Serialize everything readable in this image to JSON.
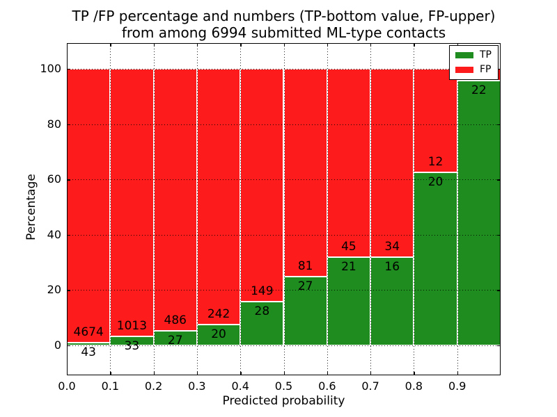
{
  "figure": {
    "title_line1": "TP /FP percentage and numbers (TP-bottom value, FP-upper)",
    "title_line2": "from among 6994 submitted ML-type contacts",
    "xlabel": "Predicted probability",
    "ylabel": "Percentage"
  },
  "colors": {
    "tp": "#1e8c1e",
    "fp": "#fe1b1b",
    "bar_edge": "#ffffff",
    "grid": "#000000",
    "background": "#ffffff"
  },
  "legend": {
    "position": "upper right",
    "entries": [
      {
        "label": "TP",
        "color": "#1e8c1e"
      },
      {
        "label": "FP",
        "color": "#fe1b1b"
      }
    ]
  },
  "chart_data": {
    "type": "bar",
    "stacked": true,
    "normalized_to": 100,
    "title": "TP /FP percentage and numbers (TP-bottom value, FP-upper) from among 6994 submitted ML-type contacts",
    "xlabel": "Predicted probability",
    "ylabel": "Percentage",
    "x_ticks": [
      "0.0",
      "0.1",
      "0.2",
      "0.3",
      "0.4",
      "0.5",
      "0.6",
      "0.7",
      "0.8",
      "0.9"
    ],
    "y_ticks": [
      0,
      20,
      40,
      60,
      80,
      100
    ],
    "xlim": [
      0.0,
      1.0
    ],
    "ylim": [
      -10.8,
      109.3
    ],
    "grid": "dotted",
    "legend_position": "upper right",
    "series": [
      {
        "name": "TP",
        "position": "bottom",
        "color": "#1e8c1e"
      },
      {
        "name": "FP",
        "position": "top",
        "color": "#fe1b1b"
      }
    ],
    "bins": [
      {
        "range": [
          0.0,
          0.1
        ],
        "tp_count": 43,
        "fp_count": 4674,
        "tp_pct": 0.91,
        "fp_pct": 99.09
      },
      {
        "range": [
          0.1,
          0.2
        ],
        "tp_count": 33,
        "fp_count": 1013,
        "tp_pct": 3.15,
        "fp_pct": 96.85
      },
      {
        "range": [
          0.2,
          0.3
        ],
        "tp_count": 27,
        "fp_count": 486,
        "tp_pct": 5.26,
        "fp_pct": 94.74
      },
      {
        "range": [
          0.3,
          0.4
        ],
        "tp_count": 20,
        "fp_count": 242,
        "tp_pct": 7.63,
        "fp_pct": 92.37
      },
      {
        "range": [
          0.4,
          0.5
        ],
        "tp_count": 28,
        "fp_count": 149,
        "tp_pct": 15.82,
        "fp_pct": 84.18
      },
      {
        "range": [
          0.5,
          0.6
        ],
        "tp_count": 27,
        "fp_count": 81,
        "tp_pct": 25.0,
        "fp_pct": 75.0
      },
      {
        "range": [
          0.6,
          0.7
        ],
        "tp_count": 21,
        "fp_count": 45,
        "tp_pct": 31.82,
        "fp_pct": 68.18
      },
      {
        "range": [
          0.7,
          0.8
        ],
        "tp_count": 16,
        "fp_count": 34,
        "tp_pct": 32.0,
        "fp_pct": 68.0
      },
      {
        "range": [
          0.8,
          0.9
        ],
        "tp_count": 20,
        "fp_count": 12,
        "tp_pct": 62.5,
        "fp_pct": 37.5
      },
      {
        "range": [
          0.9,
          1.0
        ],
        "tp_count": 22,
        "fp_count": null,
        "tp_pct": 95.65,
        "fp_pct": 4.35
      }
    ]
  }
}
